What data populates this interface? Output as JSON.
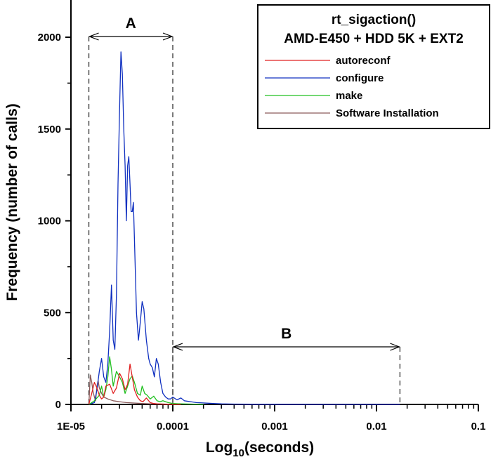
{
  "chart_data": {
    "type": "line",
    "title": [
      "rt_sigaction()",
      "AMD-E450 + HDD 5K + EXT2"
    ],
    "xlabel": "Log",
    "xlabel_sub": "10",
    "xlabel_suffix": "(seconds)",
    "ylabel": "Frequency (number of calls)",
    "xscale": "log",
    "xlim": [
      1e-05,
      0.1
    ],
    "ylim": [
      0,
      2000
    ],
    "x_tick_values": [
      1e-05,
      0.0001,
      0.001,
      0.01,
      0.1
    ],
    "x_tick_labels": [
      "1E-05",
      "0.0001",
      "0.001",
      "0.01",
      "0.1"
    ],
    "y_tick_values": [
      0,
      500,
      1000,
      1500,
      2000
    ],
    "y_tick_labels": [
      "0",
      "500",
      "1000",
      "1500",
      "2000"
    ],
    "legend_position": "top-right",
    "grid": false,
    "regions": [
      {
        "label": "A",
        "from": 1.5e-05,
        "to": 0.0001
      },
      {
        "label": "B",
        "from": 0.0001,
        "to": 0.017
      }
    ],
    "series": [
      {
        "name": "autoreconf",
        "color": "#e02020",
        "x": [
          1.5e-05,
          1.6e-05,
          1.7e-05,
          1.8e-05,
          1.9e-05,
          2e-05,
          2.1e-05,
          2.2e-05,
          2.4e-05,
          2.6e-05,
          2.8e-05,
          3e-05,
          3.2e-05,
          3.4e-05,
          3.6e-05,
          3.8e-05,
          4e-05,
          4.2e-05,
          4.5e-05,
          4.8e-05,
          5.1e-05,
          5.5e-05,
          6e-05,
          6.5e-05,
          7e-05,
          8e-05,
          9e-05,
          0.0001,
          0.00012
        ],
        "values": [
          0,
          60,
          120,
          90,
          50,
          30,
          40,
          100,
          110,
          60,
          90,
          170,
          140,
          80,
          110,
          220,
          150,
          80,
          40,
          20,
          15,
          35,
          10,
          5,
          3,
          2,
          1,
          0,
          0
        ]
      },
      {
        "name": "configure",
        "color": "#1030c0",
        "x": [
          1.5e-05,
          1.7e-05,
          1.8e-05,
          1.9e-05,
          2e-05,
          2.1e-05,
          2.2e-05,
          2.3e-05,
          2.4e-05,
          2.5e-05,
          2.6e-05,
          2.7e-05,
          2.8e-05,
          2.9e-05,
          3e-05,
          3.1e-05,
          3.2e-05,
          3.3e-05,
          3.4e-05,
          3.5e-05,
          3.6e-05,
          3.7e-05,
          3.8e-05,
          3.9e-05,
          4e-05,
          4.1e-05,
          4.2e-05,
          4.4e-05,
          4.6e-05,
          4.8e-05,
          5e-05,
          5.2e-05,
          5.5e-05,
          5.8e-05,
          6e-05,
          6.3e-05,
          6.6e-05,
          6.9e-05,
          7.2e-05,
          7.6e-05,
          8e-05,
          8.5e-05,
          9e-05,
          9.5e-05,
          0.0001,
          0.00011,
          0.00012,
          0.00013,
          0.00015,
          0.00017,
          0.0002,
          0.00025,
          0.0003,
          0.0004,
          0.0006,
          0.001,
          0.003,
          0.01,
          0.017
        ],
        "values": [
          0,
          10,
          80,
          180,
          250,
          150,
          120,
          220,
          400,
          650,
          350,
          300,
          600,
          1200,
          1600,
          1920,
          1800,
          1500,
          1300,
          1000,
          1300,
          1350,
          1200,
          1050,
          1050,
          1100,
          900,
          500,
          350,
          450,
          560,
          520,
          350,
          250,
          220,
          200,
          150,
          250,
          220,
          120,
          60,
          40,
          30,
          30,
          40,
          25,
          35,
          20,
          15,
          10,
          8,
          5,
          3,
          2,
          1,
          1,
          0,
          0,
          0
        ]
      },
      {
        "name": "make",
        "color": "#20c020",
        "x": [
          1.5e-05,
          1.7e-05,
          1.9e-05,
          2e-05,
          2.1e-05,
          2.2e-05,
          2.3e-05,
          2.4e-05,
          2.5e-05,
          2.6e-05,
          2.7e-05,
          2.8e-05,
          3e-05,
          3.2e-05,
          3.4e-05,
          3.6e-05,
          3.8e-05,
          4e-05,
          4.2e-05,
          4.5e-05,
          4.8e-05,
          5e-05,
          5.3e-05,
          5.6e-05,
          6e-05,
          6.5e-05,
          7e-05,
          7.5e-05,
          8e-05,
          9e-05,
          0.0001,
          0.00012,
          0.00015,
          0.0002
        ],
        "values": [
          0,
          20,
          50,
          100,
          40,
          80,
          150,
          260,
          190,
          100,
          140,
          180,
          150,
          120,
          60,
          100,
          140,
          155,
          120,
          60,
          50,
          100,
          60,
          50,
          30,
          45,
          20,
          15,
          20,
          10,
          5,
          3,
          2,
          0
        ]
      },
      {
        "name": "Software Installation",
        "color": "#8a5a5a",
        "x": [
          1.5e-05,
          1.55e-05,
          1.6e-05,
          1.65e-05,
          1.7e-05,
          1.75e-05,
          1.8e-05,
          1.85e-05,
          1.9e-05,
          2e-05,
          2.1e-05,
          2.3e-05,
          2.6e-05,
          3e-05,
          3.5e-05,
          4e-05,
          5e-05,
          6e-05,
          8e-05,
          0.0001
        ],
        "values": [
          0,
          160,
          120,
          70,
          40,
          20,
          100,
          130,
          90,
          60,
          40,
          30,
          20,
          15,
          10,
          8,
          5,
          3,
          2,
          0
        ]
      }
    ]
  }
}
